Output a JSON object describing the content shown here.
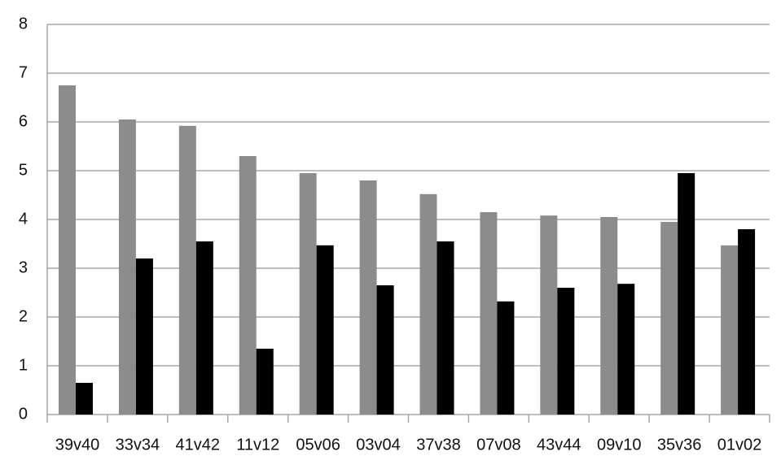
{
  "chart_data": {
    "type": "bar",
    "categories": [
      "39v40",
      "33v34",
      "41v42",
      "11v12",
      "05v06",
      "03v04",
      "37v38",
      "07v08",
      "43v44",
      "09v10",
      "35v36",
      "01v02"
    ],
    "series": [
      {
        "color": "#8c8c8c",
        "values": [
          6.75,
          6.05,
          5.92,
          5.3,
          4.95,
          4.8,
          4.52,
          4.15,
          4.08,
          4.05,
          3.95,
          3.47
        ]
      },
      {
        "color": "#000000",
        "values": [
          0.65,
          3.2,
          3.55,
          1.35,
          3.47,
          2.65,
          3.55,
          2.32,
          2.6,
          2.68,
          4.95,
          3.8
        ]
      }
    ],
    "ylim": [
      0,
      8
    ],
    "yticks": [
      0,
      1,
      2,
      3,
      4,
      5,
      6,
      7,
      8
    ],
    "grid": true
  }
}
